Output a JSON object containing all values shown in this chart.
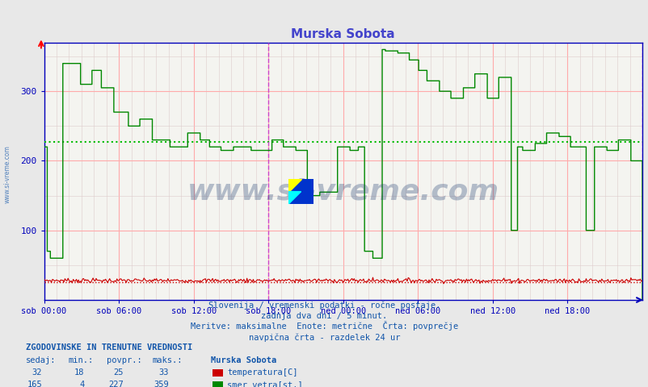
{
  "title": "Murska Sobota",
  "title_color": "#4444cc",
  "bg_color": "#e8e8e8",
  "plot_bg_color": "#f4f4f0",
  "grid_color_major": "#ffaaaa",
  "grid_color_minor": "#ddcccc",
  "axis_color": "#0000bb",
  "text_color": "#1155aa",
  "xlabel_ticks": [
    "sob 00:00",
    "sob 06:00",
    "sob 12:00",
    "sob 18:00",
    "ned 00:00",
    "ned 06:00",
    "ned 12:00",
    "ned 18:00"
  ],
  "ylim": [
    0,
    370
  ],
  "yticks": [
    100,
    200,
    300
  ],
  "temp_color": "#cc0000",
  "wind_color": "#008800",
  "avg_line_color": "#00bb00",
  "avg_line_value_wind": 227,
  "avg_line_value_temp": 25,
  "vertical_line_color": "#cc44cc",
  "subtitle_lines": [
    "Slovenija / vremenski podatki - ročne postaje.",
    "zadnja dva dni / 5 minut.",
    "Meritve: maksimalne  Enote: metrične  Črta: povprečje",
    "navpična črta - razdelek 24 ur"
  ],
  "legend_title": "ZGODOVINSKE IN TRENUTNE VREDNOSTI",
  "legend_headers": [
    "sedaj:",
    "min.:",
    "povpr.:",
    "maks.:"
  ],
  "legend_data": [
    [
      32,
      18,
      25,
      33,
      "#cc0000",
      "temperatura[C]"
    ],
    [
      165,
      4,
      227,
      359,
      "#008800",
      "smer vetra[st.]"
    ]
  ],
  "watermark": "www.si-vreme.com",
  "watermark_color": "#1a3a6e",
  "n_points": 576
}
